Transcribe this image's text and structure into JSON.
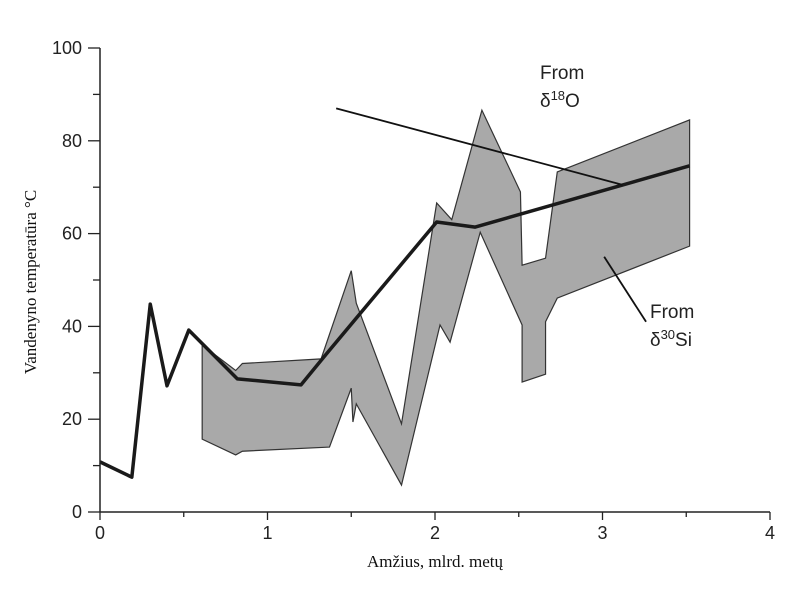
{
  "chart_data": {
    "type": "line",
    "title": "",
    "xlabel": "Amžius, mlrd. metų",
    "ylabel": "Vandenyno temperatūra °C",
    "xlim": [
      0,
      4
    ],
    "ylim": [
      0,
      100
    ],
    "xticks": [
      "0",
      "1",
      "2",
      "3",
      "4"
    ],
    "xtick_values": [
      0,
      1,
      2,
      3,
      4
    ],
    "yticks": [
      "0",
      "20",
      "40",
      "60",
      "80",
      "100"
    ],
    "ytick_values": [
      0,
      20,
      40,
      60,
      80,
      100
    ],
    "grid": false,
    "colors": {
      "line": "#1a1a1a",
      "band": "#a9a9a9",
      "band_edge": "#333333"
    },
    "series": [
      {
        "type": "line",
        "x": [
          0,
          0.19,
          0.3,
          0.4,
          0.53,
          0.82,
          1.2,
          1.35,
          2.01,
          2.24,
          3.52
        ],
        "y": [
          10.8,
          7.5,
          44.8,
          27.2,
          39.2,
          28.7,
          27.4,
          34,
          62.5,
          61.4,
          74.6
        ]
      },
      {
        "type": "band",
        "polygon_x": [
          0.61,
          0.81,
          0.85,
          1.32,
          1.5,
          1.53,
          1.8,
          2.01,
          2.1,
          2.28,
          2.51,
          2.52,
          2.66,
          2.73,
          3.52,
          3.52,
          2.73,
          2.66,
          2.66,
          2.52,
          2.52,
          2.27,
          2.09,
          2.03,
          1.8,
          1.53,
          1.51,
          1.5,
          1.37,
          0.85,
          0.81,
          0.61
        ],
        "polygon_y": [
          36,
          30.5,
          32,
          33,
          52,
          45,
          19,
          66.6,
          63,
          86.6,
          69,
          53.2,
          54.7,
          73.3,
          84.5,
          57.3,
          46.1,
          41,
          29.7,
          28,
          40.3,
          60.3,
          36.6,
          40.3,
          5.8,
          23.3,
          19.4,
          26.7,
          14,
          13.1,
          12.3,
          15.7
        ]
      }
    ],
    "annotations": [
      {
        "line1": "From",
        "symbol": "δ",
        "sup": "18",
        "rest": "O",
        "arrow_from": [
          1.41,
          87
        ],
        "arrow_to": [
          3.12,
          70.5
        ]
      },
      {
        "line1": "From",
        "symbol": "δ",
        "sup": "30",
        "rest": "Si",
        "arrow_from": [
          3.26,
          41
        ],
        "arrow_to": [
          3.01,
          55
        ]
      }
    ]
  }
}
